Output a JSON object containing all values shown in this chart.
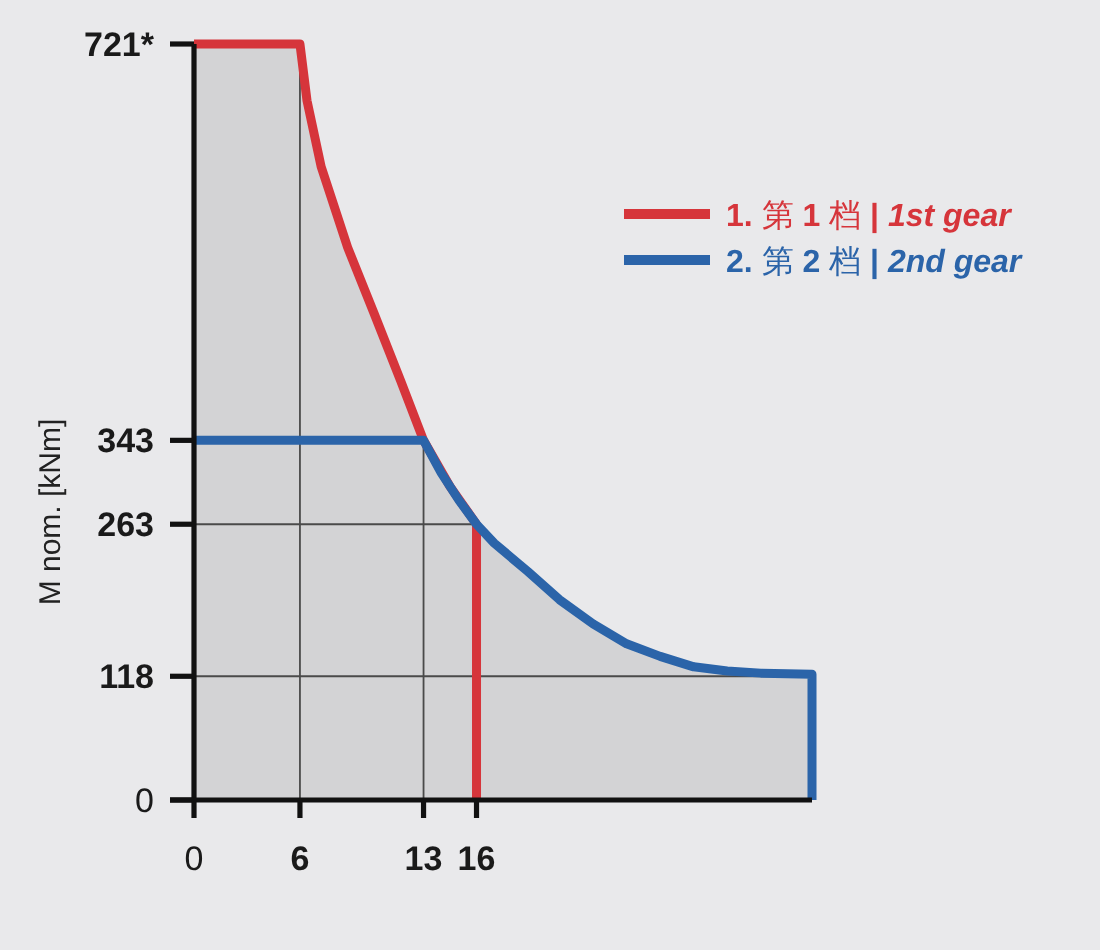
{
  "chart_data": {
    "type": "line",
    "ylabel": "M nom. [kNm]",
    "xlim": [
      0,
      35
    ],
    "xticks": [
      0,
      6,
      13,
      16
    ],
    "ylim": [
      0,
      721
    ],
    "yticks": [
      0,
      118,
      263,
      343,
      {
        "value": 721,
        "label": "721*"
      }
    ],
    "grid": true,
    "legend": "top right",
    "line_style": "solid",
    "series": [
      {
        "type": "area",
        "color": "#d3d3d5",
        "x": [
          0,
          6,
          6.4,
          7.2,
          8.7,
          10.2,
          11.7,
          13,
          14.5,
          16,
          17,
          18.9,
          20.7,
          22.6,
          24.5,
          26.4,
          28.3,
          30.2,
          32.1,
          35,
          35
        ],
        "values": [
          721,
          721,
          667,
          604,
          527,
          464,
          400,
          343,
          299,
          263,
          245,
          218,
          191,
          168,
          149,
          137,
          127,
          123,
          121,
          120,
          0
        ]
      },
      {
        "name": "1. 第 1 档 | 1st gear",
        "color": "#d6353b",
        "x": [
          0,
          6,
          6.4,
          7.2,
          8.7,
          10.2,
          11.7,
          13,
          14.5,
          16,
          16
        ],
        "values": [
          721,
          721,
          667,
          604,
          527,
          464,
          400,
          343,
          299,
          263,
          0
        ]
      },
      {
        "name": "2. 第 2 档 | 2nd gear",
        "color": "#2b64a9",
        "x": [
          0,
          13,
          14,
          15,
          16,
          17,
          18.9,
          20.7,
          22.6,
          24.5,
          26.4,
          28.3,
          30.2,
          32.1,
          35,
          35
        ],
        "values": [
          343,
          343,
          312,
          286,
          263,
          245,
          218,
          191,
          168,
          149,
          137,
          127,
          123,
          121,
          120,
          0
        ]
      }
    ]
  }
}
